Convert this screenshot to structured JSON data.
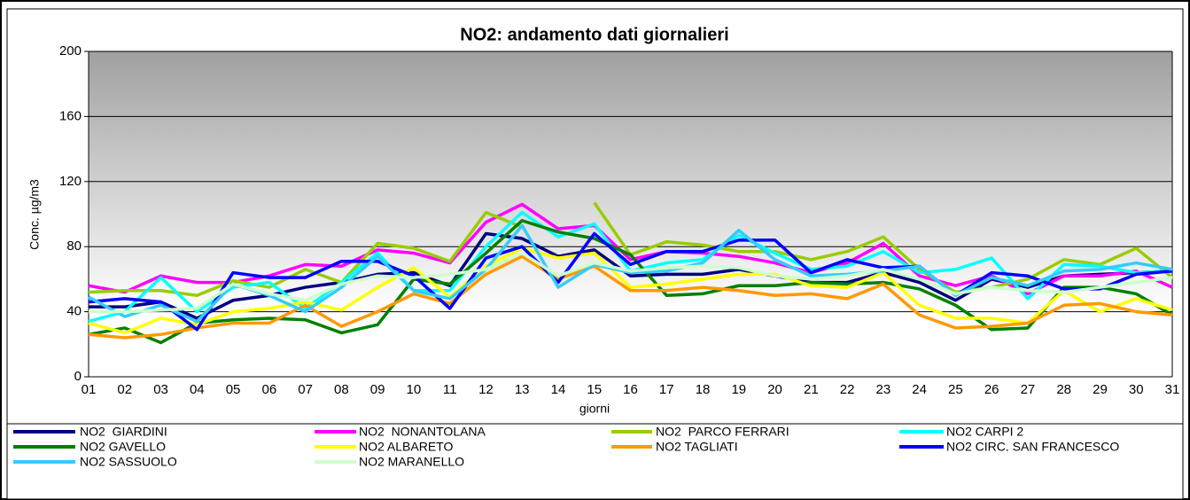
{
  "chart_data": {
    "type": "line",
    "title": "NO2: andamento dati giornalieri",
    "x_label": "giorni",
    "y_label": "Conc. µg/m3",
    "categories": [
      "01",
      "02",
      "03",
      "04",
      "05",
      "06",
      "07",
      "08",
      "09",
      "10",
      "11",
      "12",
      "13",
      "14",
      "15",
      "16",
      "17",
      "18",
      "19",
      "20",
      "21",
      "22",
      "23",
      "24",
      "25",
      "26",
      "27",
      "28",
      "29",
      "30",
      "31"
    ],
    "ylim": [
      0,
      200
    ],
    "yticks": [
      0,
      40,
      80,
      120,
      160,
      200
    ],
    "grid": true,
    "series": [
      {
        "name": "NO2  GIARDINI",
        "color": "#000080",
        "values": [
          43,
          43,
          46,
          36,
          47,
          50,
          55,
          58,
          63,
          64,
          56,
          88,
          85,
          74,
          78,
          62,
          63,
          63,
          66,
          62,
          58,
          58,
          64,
          58,
          47,
          60,
          55,
          62,
          63,
          64,
          65
        ]
      },
      {
        "name": "NO2  NONANTOLANA",
        "color": "#ff00ff",
        "values": [
          56,
          52,
          62,
          58,
          58,
          62,
          69,
          68,
          78,
          76,
          70,
          95,
          106,
          91,
          93,
          72,
          77,
          76,
          74,
          70,
          64,
          70,
          82,
          62,
          56,
          62,
          51,
          62,
          62,
          65,
          55
        ]
      },
      {
        "name": "NO2  PARCO FERRARI",
        "color": "#99cc00",
        "values": [
          52,
          53,
          53,
          50,
          59,
          55,
          66,
          58,
          82,
          79,
          71,
          101,
          92,
          null,
          107,
          75,
          83,
          81,
          77,
          77,
          72,
          77,
          86,
          66,
          52,
          55,
          60,
          72,
          69,
          79,
          61
        ]
      },
      {
        "name": "NO2 CARPI 2",
        "color": "#00ffff",
        "values": [
          34,
          40,
          61,
          40,
          55,
          58,
          42,
          58,
          76,
          53,
          53,
          80,
          101,
          86,
          94,
          65,
          70,
          72,
          87,
          76,
          66,
          68,
          77,
          64,
          66,
          73,
          48,
          69,
          68,
          64,
          65
        ]
      },
      {
        "name": "NO2 GAVELLO",
        "color": "#008000",
        "values": [
          26,
          30,
          21,
          33,
          35,
          36,
          35,
          27,
          32,
          60,
          57,
          76,
          96,
          89,
          85,
          75,
          50,
          51,
          56,
          56,
          58,
          57,
          58,
          54,
          44,
          29,
          30,
          55,
          55,
          51,
          38
        ]
      },
      {
        "name": "NO2 ALBARETO",
        "color": "#ffff00",
        "values": [
          33,
          27,
          36,
          32,
          40,
          42,
          46,
          41,
          55,
          67,
          49,
          68,
          79,
          73,
          76,
          55,
          57,
          60,
          63,
          63,
          56,
          55,
          64,
          44,
          36,
          36,
          33,
          53,
          40,
          48,
          41
        ]
      },
      {
        "name": "NO2 TAGLIATI",
        "color": "#ff9900",
        "values": [
          26,
          24,
          26,
          30,
          33,
          33,
          44,
          31,
          40,
          51,
          45,
          63,
          74,
          60,
          68,
          53,
          53,
          55,
          53,
          50,
          51,
          48,
          57,
          38,
          30,
          31,
          33,
          44,
          45,
          40,
          38
        ]
      },
      {
        "name": "NO2 CIRC. SAN FRANCESCO",
        "color": "#0000ff",
        "values": [
          46,
          48,
          46,
          29,
          64,
          61,
          61,
          71,
          71,
          62,
          42,
          73,
          80,
          58,
          88,
          69,
          77,
          77,
          84,
          84,
          64,
          72,
          67,
          68,
          50,
          64,
          62,
          54,
          54,
          63,
          65
        ]
      },
      {
        "name": "NO2 SASSUOLO",
        "color": "#33ccff",
        "values": [
          49,
          37,
          44,
          34,
          57,
          50,
          40,
          55,
          74,
          53,
          48,
          66,
          93,
          55,
          69,
          64,
          65,
          70,
          90,
          72,
          62,
          63,
          65,
          68,
          50,
          61,
          56,
          65,
          66,
          70,
          66
        ]
      },
      {
        "name": "NO2 MARANELLO",
        "color": "#ccffcc",
        "values": [
          40,
          40,
          41,
          42,
          57,
          51,
          47,
          57,
          62,
          61,
          63,
          66,
          76,
          62,
          70,
          65,
          67,
          68,
          67,
          62,
          60,
          62,
          66,
          60,
          51,
          55,
          53,
          52,
          55,
          58,
          61
        ]
      }
    ]
  }
}
